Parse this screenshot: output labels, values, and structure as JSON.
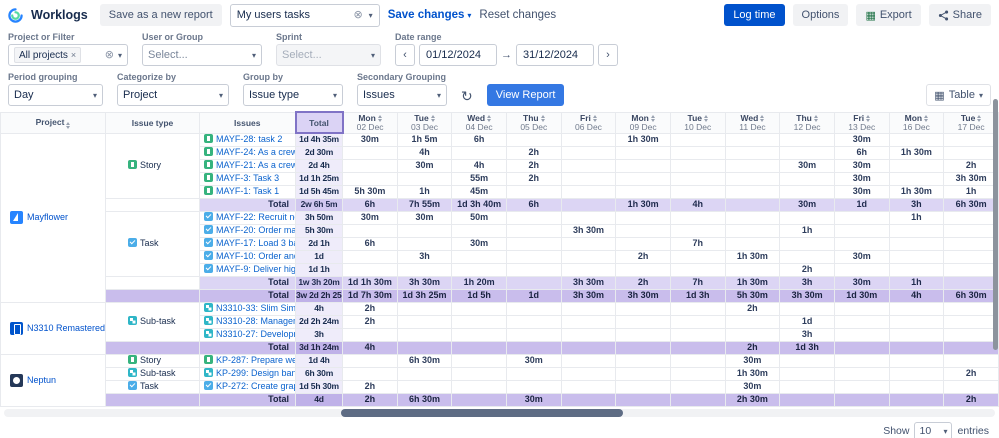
{
  "colors": {
    "accent_blue": "#0052CC",
    "total_column": "#EFECFA",
    "group_total_row": "#DCD5F4",
    "project_total_row": "#C9BDEC"
  },
  "topbar": {
    "app_name": "Worklogs",
    "save_as_new_label": "Save as a new report",
    "report_selector_value": "My users tasks",
    "save_changes_label": "Save changes",
    "reset_changes_label": "Reset changes",
    "log_time_label": "Log time",
    "options_label": "Options",
    "export_label": "Export",
    "share_label": "Share"
  },
  "filters_row1": {
    "project_filter_label": "Project or Filter",
    "project_filter_chip": "All projects",
    "user_group_label": "User or Group",
    "user_group_placeholder": "Select...",
    "sprint_label": "Sprint",
    "sprint_placeholder": "Select...",
    "date_range_label": "Date range",
    "date_from": "01/12/2024",
    "date_to": "31/12/2024"
  },
  "filters_row2": {
    "period_grouping_label": "Period grouping",
    "period_grouping_value": "Day",
    "categorize_by_label": "Categorize by",
    "categorize_by_value": "Project",
    "group_by_label": "Group by",
    "group_by_value": "Issue type",
    "secondary_grouping_label": "Secondary Grouping",
    "secondary_grouping_value": "Issues",
    "view_report_label": "View Report",
    "view_mode_value": "Table"
  },
  "footer": {
    "show_label": "Show",
    "page_size_value": "10",
    "entries_label": "entries"
  },
  "table": {
    "headers": {
      "project": "Project",
      "issue_type": "Issue type",
      "issues": "Issues",
      "total": "Total"
    },
    "date_columns": [
      {
        "day": "Mon",
        "date": "02 Dec"
      },
      {
        "day": "Tue",
        "date": "03 Dec"
      },
      {
        "day": "Wed",
        "date": "04 Dec"
      },
      {
        "day": "Thu",
        "date": "05 Dec"
      },
      {
        "day": "Fri",
        "date": "06 Dec"
      },
      {
        "day": "Mon",
        "date": "09 Dec"
      },
      {
        "day": "Tue",
        "date": "10 Dec"
      },
      {
        "day": "Wed",
        "date": "11 Dec"
      },
      {
        "day": "Thu",
        "date": "12 Dec"
      },
      {
        "day": "Fri",
        "date": "13 Dec"
      },
      {
        "day": "Mon",
        "date": "16 Dec"
      },
      {
        "day": "Tue",
        "date": "17 Dec"
      }
    ],
    "rows": [
      {
        "kind": "issue",
        "project": {
          "name": "Mayflower",
          "icon": "mayflower",
          "span": 13
        },
        "type": {
          "label": "Story",
          "icon": "story",
          "span": 5
        },
        "icon": "story",
        "issue": "MAYF-28: task 2",
        "total": "1d 4h 35m",
        "cells": [
          "30m",
          "1h 5m",
          "6h",
          "",
          "",
          "1h 30m",
          "",
          "",
          "",
          "30m",
          "",
          ""
        ]
      },
      {
        "kind": "issue",
        "icon": "story",
        "issue": "MAYF-24: As a crew me...",
        "total": "2d 30m",
        "cells": [
          "",
          "4h",
          "",
          "2h",
          "",
          "",
          "",
          "",
          "",
          "6h",
          "1h 30m",
          ""
        ]
      },
      {
        "kind": "issue",
        "icon": "story",
        "issue": "MAYF-21: As a crew me...",
        "total": "2d 4h",
        "cells": [
          "",
          "30m",
          "4h",
          "2h",
          "",
          "",
          "",
          "",
          "30m",
          "30m",
          "",
          "2h"
        ]
      },
      {
        "kind": "issue",
        "icon": "story",
        "issue": "MAYF-3: Task 3",
        "total": "1d 1h 25m",
        "cells": [
          "",
          "",
          "55m",
          "2h",
          "",
          "",
          "",
          "",
          "",
          "30m",
          "",
          "3h 30m"
        ]
      },
      {
        "kind": "issue",
        "icon": "story",
        "issue": "MAYF-1: Task 1",
        "total": "1d 5h 45m",
        "cells": [
          "5h 30m",
          "1h",
          "45m",
          "",
          "",
          "",
          "",
          "",
          "",
          "30m",
          "1h 30m",
          "1h"
        ]
      },
      {
        "kind": "group_total",
        "type_blank": true,
        "label": "Total",
        "total": "2w 6h 5m",
        "cells": [
          "6h",
          "7h 55m",
          "1d 3h 40m",
          "6h",
          "",
          "1h 30m",
          "4h",
          "",
          "30m",
          "1d",
          "3h",
          "6h 30m"
        ]
      },
      {
        "kind": "issue",
        "type": {
          "label": "Task",
          "icon": "task",
          "span": 5
        },
        "icon": "task",
        "issue": "MAYF-22: Recruit needl...",
        "total": "3h 50m",
        "cells": [
          "30m",
          "30m",
          "50m",
          "",
          "",
          "",
          "",
          "",
          "",
          "",
          "1h",
          ""
        ]
      },
      {
        "kind": "issue",
        "icon": "task",
        "issue": "MAYF-20: Order materi...",
        "total": "5h 30m",
        "cells": [
          "",
          "",
          "",
          "",
          "3h 30m",
          "",
          "",
          "",
          "1h",
          "",
          "",
          ""
        ]
      },
      {
        "kind": "issue",
        "icon": "task",
        "issue": "MAYF-17: Load 3 barrel...",
        "total": "2d 1h",
        "cells": [
          "6h",
          "",
          "30m",
          "",
          "",
          "",
          "7h",
          "",
          "",
          "",
          "",
          ""
        ]
      },
      {
        "kind": "issue",
        "icon": "task",
        "issue": "MAYF-10: Order and d...",
        "total": "1d",
        "cells": [
          "",
          "3h",
          "",
          "",
          "",
          "2h",
          "",
          "1h 30m",
          "",
          "30m",
          "",
          ""
        ]
      },
      {
        "kind": "issue",
        "icon": "task",
        "issue": "MAYF-9: Deliver high q...",
        "total": "1d 1h",
        "cells": [
          "",
          "",
          "",
          "",
          "",
          "",
          "",
          "",
          "2h",
          "",
          "",
          ""
        ]
      },
      {
        "kind": "group_total",
        "type_blank": true,
        "label": "Total",
        "total": "1w 3h 20m",
        "cells": [
          "1d 1h 30m",
          "3h 30m",
          "1h 20m",
          "",
          "3h 30m",
          "2h",
          "7h",
          "1h 30m",
          "3h",
          "30m",
          "1h",
          ""
        ]
      },
      {
        "kind": "project_total",
        "type_blank": true,
        "label": "Total",
        "total": "3w 2d 2h 25m",
        "cells": [
          "1d 7h 30m",
          "1d 3h 25m",
          "1d 5h",
          "1d",
          "3h 30m",
          "3h 30m",
          "1d 3h",
          "5h 30m",
          "3h 30m",
          "1d 30m",
          "4h",
          "6h 30m"
        ]
      },
      {
        "kind": "issue",
        "project": {
          "name": "N3310 Remastered",
          "icon": "n3310",
          "span": 4
        },
        "type": {
          "label": "Sub-task",
          "icon": "subtask",
          "span": 3
        },
        "icon": "subtask",
        "issue": "N3310-33: Slim Sim Sh...",
        "total": "4h",
        "cells": [
          "2h",
          "",
          "",
          "",
          "",
          "",
          "",
          "2h",
          "",
          "",
          "",
          ""
        ]
      },
      {
        "kind": "issue",
        "icon": "subtask",
        "issue": "N3310-28: Management",
        "total": "2d 2h 24m",
        "cells": [
          "2h",
          "",
          "",
          "",
          "",
          "",
          "",
          "",
          "1d",
          "",
          "",
          ""
        ]
      },
      {
        "kind": "issue",
        "icon": "subtask",
        "issue": "N3310-27: Development",
        "total": "3h",
        "cells": [
          "",
          "",
          "",
          "",
          "",
          "",
          "",
          "",
          "3h",
          "",
          "",
          ""
        ]
      },
      {
        "kind": "project_total",
        "type_blank": true,
        "label": "Total",
        "total": "3d 1h 24m",
        "cells": [
          "4h",
          "",
          "",
          "",
          "",
          "",
          "",
          "2h",
          "1d 3h",
          "",
          "",
          ""
        ]
      },
      {
        "kind": "issue",
        "project": {
          "name": "Neptun",
          "icon": "neptun",
          "span": 4
        },
        "type": {
          "label": "Story",
          "icon": "story",
          "span": 1
        },
        "icon": "story",
        "issue": "KP-287: Prepare weeke...",
        "total": "1d 4h",
        "cells": [
          "",
          "6h 30m",
          "",
          "30m",
          "",
          "",
          "",
          "30m",
          "",
          "",
          "",
          ""
        ]
      },
      {
        "kind": "issue",
        "type": {
          "label": "Sub-task",
          "icon": "subtask",
          "span": 1
        },
        "icon": "subtask",
        "issue": "KP-299: Design banners",
        "total": "6h 30m",
        "cells": [
          "",
          "",
          "",
          "",
          "",
          "",
          "",
          "1h 30m",
          "",
          "",
          "",
          "2h"
        ]
      },
      {
        "kind": "issue",
        "type": {
          "label": "Task",
          "icon": "task",
          "span": 1
        },
        "icon": "task",
        "issue": "KP-272: Create graphic...",
        "total": "1d 5h 30m",
        "cells": [
          "2h",
          "",
          "",
          "",
          "",
          "",
          "",
          "30m",
          "",
          "",
          "",
          ""
        ]
      },
      {
        "kind": "project_total",
        "type_blank": true,
        "label": "Total",
        "total": "4d",
        "cells": [
          "2h",
          "6h 30m",
          "",
          "30m",
          "",
          "",
          "",
          "2h 30m",
          "",
          "",
          "",
          "2h"
        ]
      }
    ]
  }
}
